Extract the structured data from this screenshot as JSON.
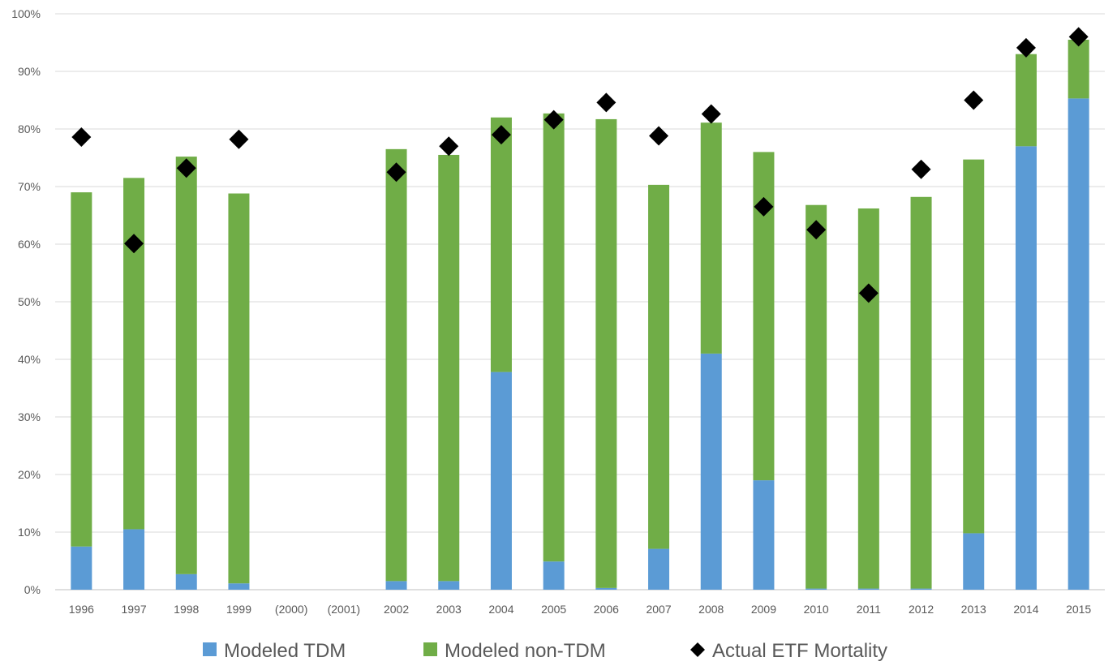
{
  "chart_data": {
    "type": "bar",
    "stacked": true,
    "categories": [
      "1996",
      "1997",
      "1998",
      "1999",
      "(2000)",
      "(2001)",
      "2002",
      "2003",
      "2004",
      "2005",
      "2006",
      "2007",
      "2008",
      "2009",
      "2010",
      "2011",
      "2012",
      "2013",
      "2014",
      "2015"
    ],
    "series": [
      {
        "name": "Modeled TDM",
        "kind": "bar",
        "color": "#5b9bd5",
        "values": [
          7.5,
          10.5,
          2.7,
          1.1,
          null,
          null,
          1.5,
          1.5,
          37.8,
          4.9,
          0.3,
          7.1,
          41.0,
          19.0,
          0.2,
          0.2,
          0.2,
          9.8,
          77.0,
          85.3
        ]
      },
      {
        "name": "Modeled non-TDM",
        "kind": "bar",
        "color": "#70ad47",
        "values": [
          61.5,
          61.0,
          72.5,
          67.7,
          null,
          null,
          75.0,
          74.0,
          44.2,
          77.8,
          81.4,
          63.2,
          40.1,
          57.0,
          66.6,
          66.0,
          68.0,
          64.9,
          16.0,
          10.2
        ]
      },
      {
        "name": "Actual ETF Mortality",
        "kind": "marker",
        "marker": "diamond",
        "color": "#000000",
        "values": [
          78.6,
          60.1,
          73.2,
          78.2,
          null,
          null,
          72.5,
          77.0,
          79.0,
          81.6,
          84.6,
          78.8,
          82.6,
          66.5,
          62.5,
          51.5,
          73.0,
          85.0,
          94.1,
          96.0
        ]
      }
    ],
    "y_ticks": [
      "0%",
      "10%",
      "20%",
      "30%",
      "40%",
      "50%",
      "60%",
      "70%",
      "80%",
      "90%",
      "100%"
    ],
    "ylim": [
      0,
      100
    ],
    "grid": true,
    "legend_position": "bottom",
    "title": "",
    "xlabel": "",
    "ylabel": ""
  }
}
